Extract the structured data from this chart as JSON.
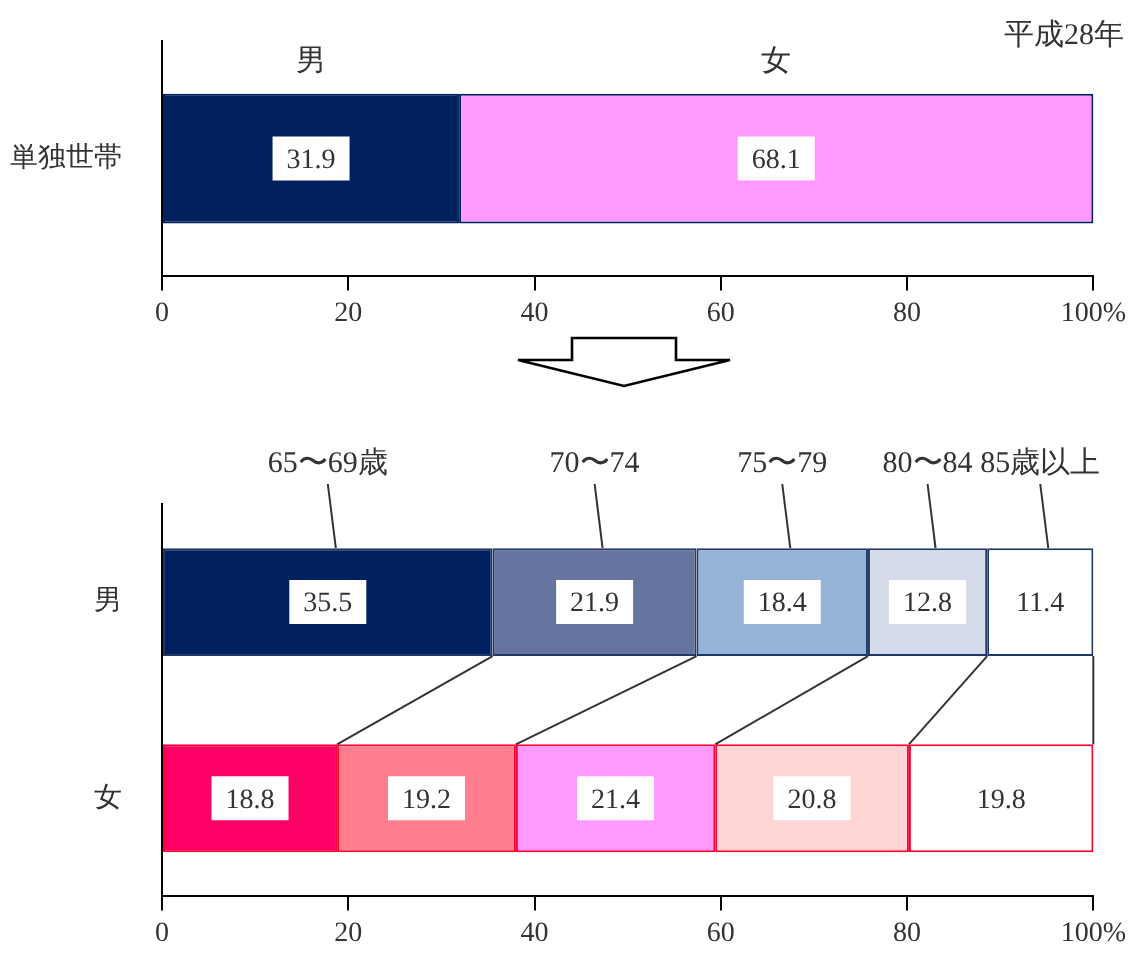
{
  "chart_data": [
    {
      "type": "bar",
      "orientation": "horizontal",
      "stacked": true,
      "categories": [
        "単独世帯"
      ],
      "series": [
        {
          "name": "男",
          "color": "#002060",
          "values": [
            31.9
          ]
        },
        {
          "name": "女",
          "color": "#ff99ff",
          "values": [
            68.1
          ]
        }
      ],
      "xlim": [
        0,
        100
      ],
      "xticks": [
        0,
        20,
        40,
        60,
        80,
        {
          "value": 100,
          "label": "100%"
        }
      ],
      "data_labels": true,
      "legend": false,
      "grid": false,
      "annotations": [
        "平成28年"
      ]
    },
    {
      "type": "bar",
      "orientation": "horizontal",
      "stacked": true,
      "categories": [
        "男",
        "女"
      ],
      "series": [
        {
          "name": "65〜69歳",
          "colors": [
            "#002060",
            "#ff0066"
          ],
          "values": [
            35.5,
            18.8
          ]
        },
        {
          "name": "70〜74",
          "colors": [
            "#6674a0",
            "#ff7f8f"
          ],
          "values": [
            21.9,
            19.2
          ]
        },
        {
          "name": "75〜79",
          "colors": [
            "#95b3d7",
            "#ff99ff"
          ],
          "values": [
            18.4,
            21.4
          ]
        },
        {
          "name": "80〜84",
          "colors": [
            "#d6dbea",
            "#ffd6d6"
          ],
          "values": [
            12.8,
            20.8
          ]
        },
        {
          "name": "85歳以上",
          "colors": [
            "#ffffff",
            "#ffffff"
          ],
          "values": [
            11.4,
            19.8
          ]
        }
      ],
      "xlim": [
        0,
        100
      ],
      "xticks": [
        0,
        20,
        40,
        60,
        80,
        {
          "value": 100,
          "label": "100%"
        }
      ],
      "data_labels": true,
      "legend": false,
      "grid": false
    }
  ]
}
